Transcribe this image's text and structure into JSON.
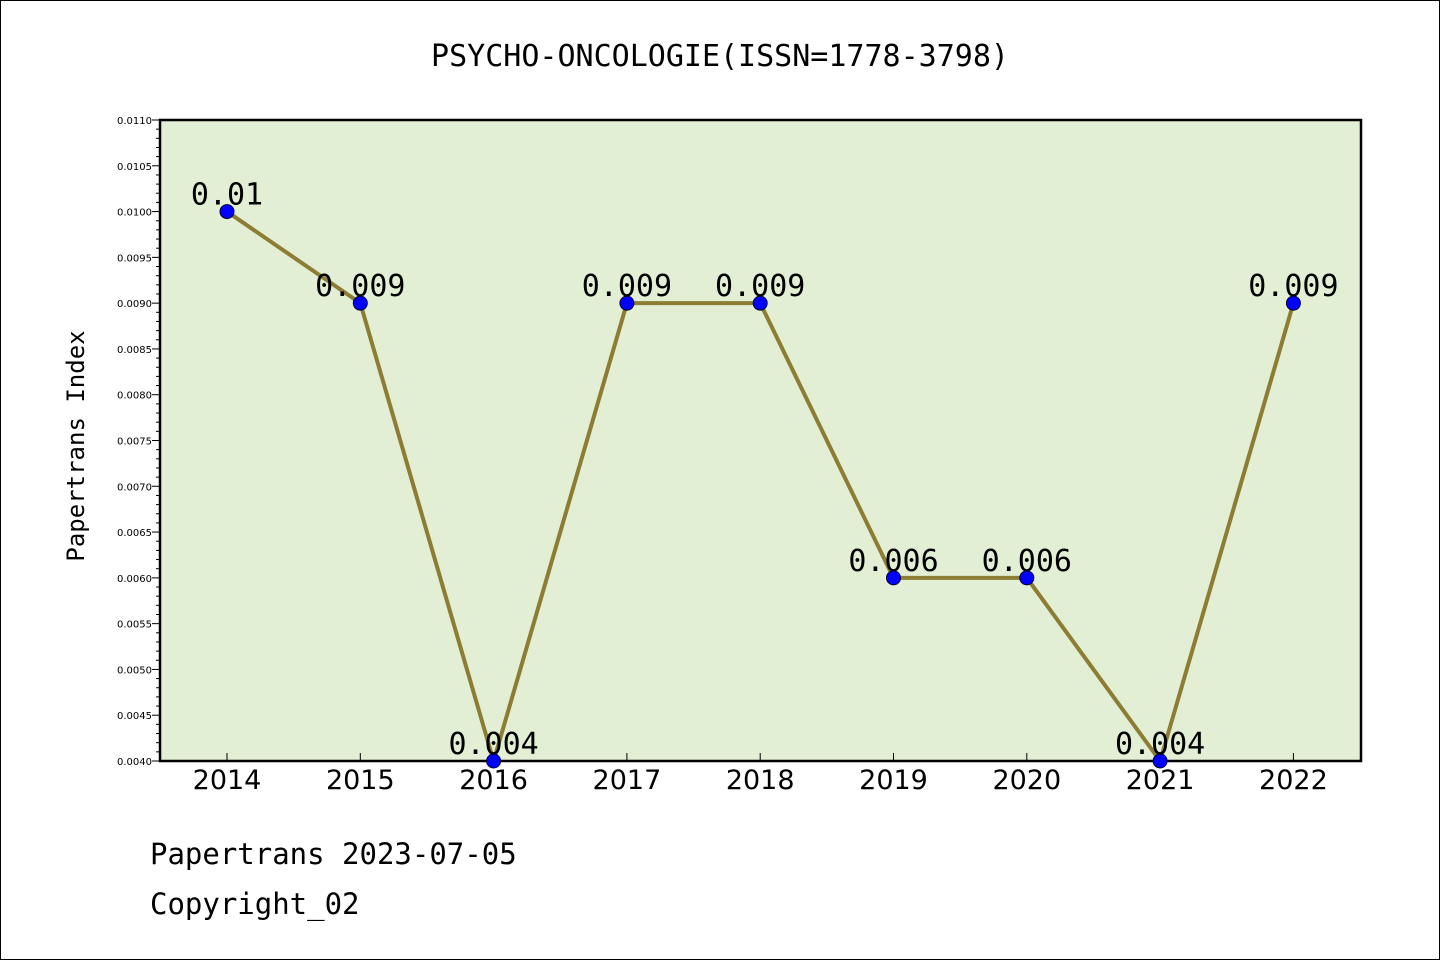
{
  "chart_data": {
    "type": "line",
    "title": "PSYCHO-ONCOLOGIE(ISSN=1778-3798)",
    "xlabel": "",
    "ylabel": "Papertrans Index",
    "categories": [
      "2014",
      "2015",
      "2016",
      "2017",
      "2018",
      "2019",
      "2020",
      "2021",
      "2022"
    ],
    "values": [
      0.01,
      0.009,
      0.004,
      0.009,
      0.009,
      0.006,
      0.006,
      0.004,
      0.009
    ],
    "data_labels": [
      "0.01",
      "0.009",
      "0.004",
      "0.009",
      "0.009",
      "0.006",
      "0.006",
      "0.004",
      "0.009"
    ],
    "ylim": [
      0.004,
      0.011
    ],
    "yticks": [
      "0.0040",
      "0.0045",
      "0.0050",
      "0.0055",
      "0.0060",
      "0.0065",
      "0.0070",
      "0.0075",
      "0.0080",
      "0.0085",
      "0.0090",
      "0.0095",
      "0.0100",
      "0.0105",
      "0.0110"
    ],
    "grid": false,
    "colors": {
      "plot_background": "#e2efd5",
      "line": "#8c7d32",
      "marker": "#0000ff"
    }
  },
  "footer": {
    "line1": "Papertrans 2023-07-05",
    "line2": "Copyright_02"
  }
}
